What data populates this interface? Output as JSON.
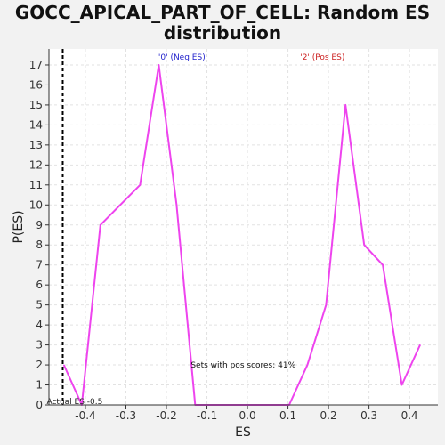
{
  "chart_data": {
    "type": "line",
    "title_lines": [
      "GOCC_APICAL_PART_OF_CELL: Random ES",
      "distribution"
    ],
    "xlabel": "ES",
    "ylabel": "P(ES)",
    "xlim": [
      -0.49,
      0.47
    ],
    "ylim": [
      0,
      17.8
    ],
    "x_ticks": [
      -0.4,
      -0.3,
      -0.2,
      -0.1,
      0.0,
      0.1,
      0.2,
      0.3,
      0.4
    ],
    "x_tick_labels": [
      "-0.4",
      "-0.3",
      "-0.2",
      "-0.1",
      "0.0",
      "0.1",
      "0.2",
      "0.3",
      "0.4"
    ],
    "y_ticks": [
      0,
      1,
      2,
      3,
      4,
      5,
      6,
      7,
      8,
      9,
      10,
      11,
      12,
      13,
      14,
      15,
      16,
      17
    ],
    "grid": true,
    "series": [
      {
        "color": "#ee44ee",
        "x": [
          -0.453,
          -0.409,
          -0.363,
          -0.265,
          -0.219,
          -0.175,
          -0.129,
          0.103,
          0.148,
          0.194,
          0.242,
          0.288,
          0.334,
          0.381,
          0.426
        ],
        "y": [
          2,
          0,
          9,
          11,
          17,
          10,
          0,
          0,
          2,
          5,
          15,
          8,
          7,
          1,
          3
        ]
      }
    ],
    "vline": {
      "x": -0.456,
      "label": "Actual ES -0.5"
    },
    "legend": [
      {
        "label": "'0' (Neg ES)",
        "color": "#2222cc",
        "x": -0.22
      },
      {
        "label": "'2' (Pos ES)",
        "color": "#cc2222",
        "x": 0.13
      }
    ],
    "annotation": {
      "text": "Sets with pos scores: 41%",
      "x": -0.14,
      "y": 2
    }
  }
}
